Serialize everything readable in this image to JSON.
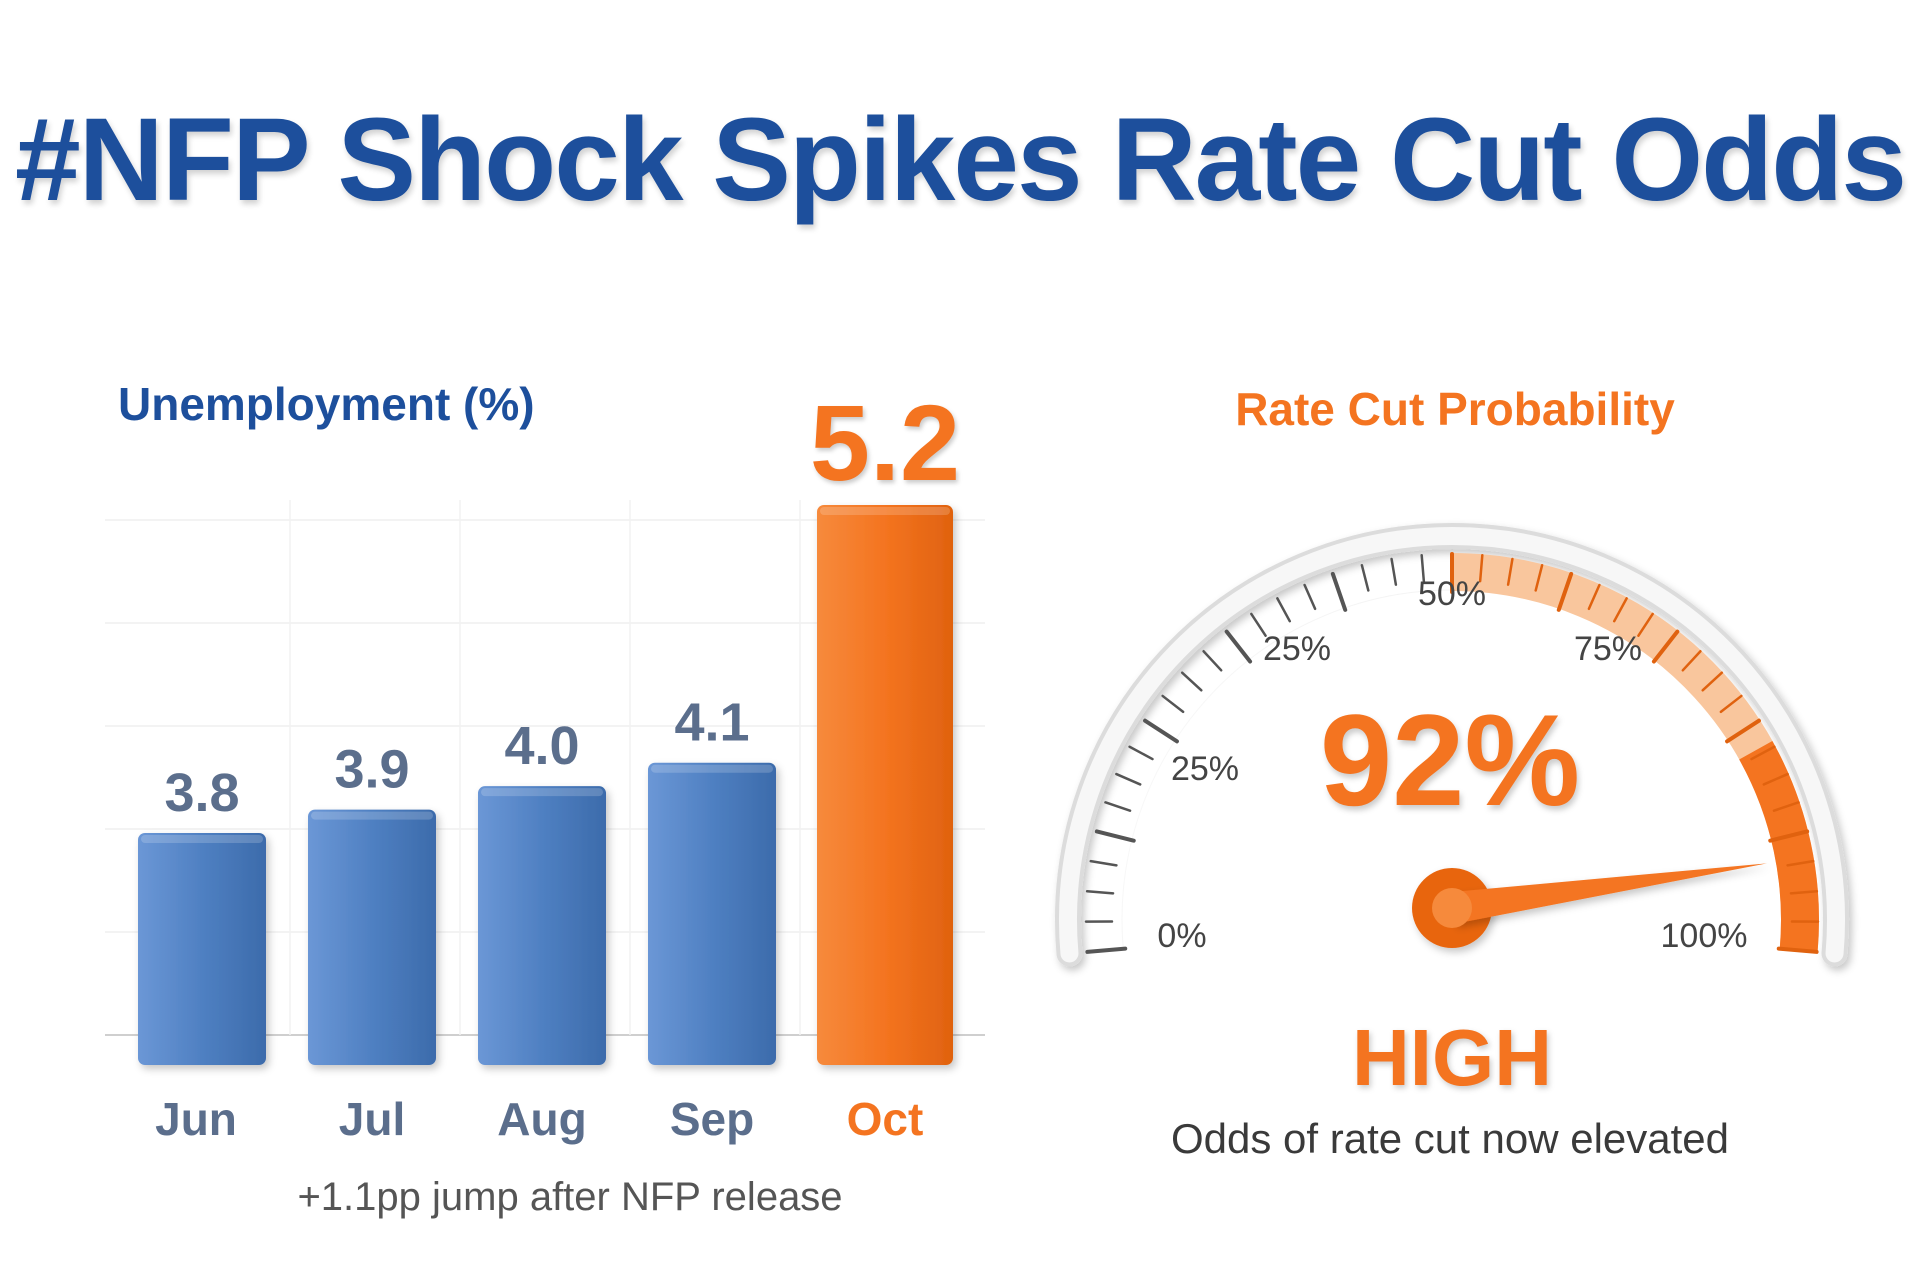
{
  "headline": "#NFP Shock Spikes Rate Cut Odds",
  "colors": {
    "headline": "#1d4f9c",
    "bar_normal": "#4f7fc0",
    "bar_highlight": "#f47420",
    "label_normal": "#5b6e8c",
    "accent": "#f47420",
    "gauge_rim": "#e6e6e6"
  },
  "chart_data": [
    {
      "type": "bar",
      "title": "Unemployment (%)",
      "categories": [
        "Jun",
        "Jul",
        "Aug",
        "Sep",
        "Oct"
      ],
      "values": [
        3.8,
        3.9,
        4.0,
        4.1,
        5.2
      ],
      "value_labels": [
        "3.8",
        "3.9",
        "4.0",
        "4.1",
        "5.2"
      ],
      "highlight_index": 4,
      "annotation": "+1.1pp jump after NFP release",
      "grid": true
    },
    {
      "type": "gauge",
      "title": "Rate Cut Probability",
      "value": 92,
      "value_label": "92%",
      "range": [
        0,
        100
      ],
      "tick_labels": [
        "0%",
        "25%",
        "25%",
        "50%",
        "75%",
        "100%"
      ],
      "status": "HIGH",
      "subtitle": "Odds of rate cut now elevated"
    }
  ]
}
